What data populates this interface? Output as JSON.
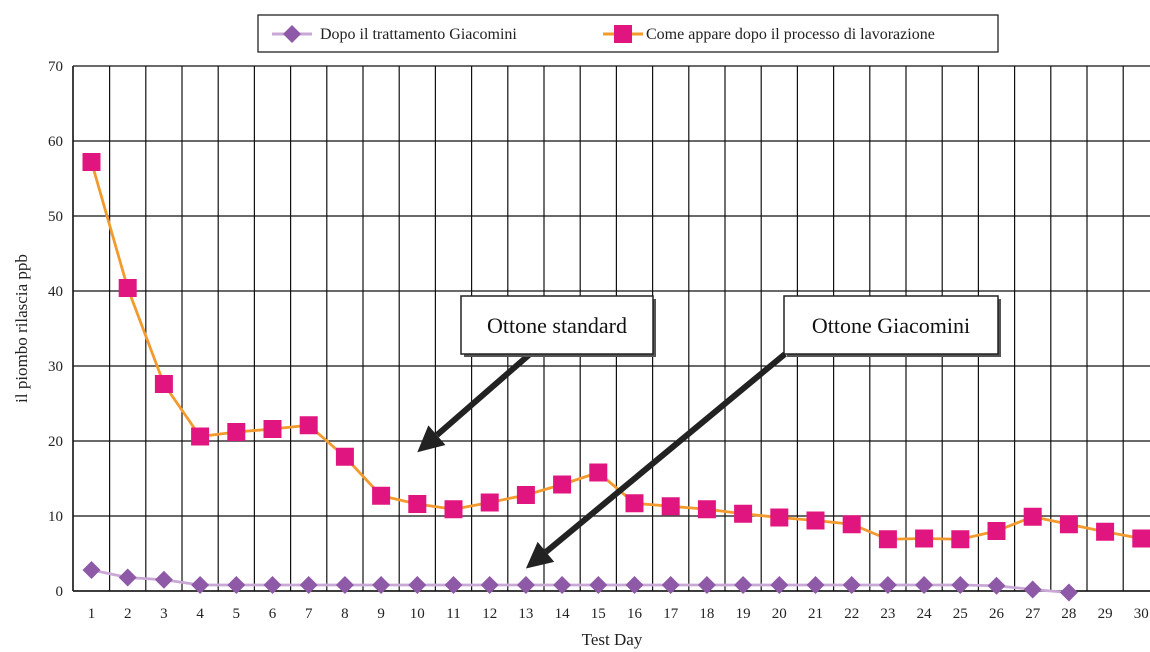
{
  "chart_data": {
    "type": "line",
    "xlabel": "Test Day",
    "ylabel": "il piombo rilascia ppb",
    "ylim": [
      0,
      70
    ],
    "yticks": [
      "0",
      "10",
      "20",
      "30",
      "40",
      "50",
      "60",
      "70"
    ],
    "x": [
      1,
      2,
      3,
      4,
      5,
      6,
      7,
      8,
      9,
      10,
      11,
      12,
      13,
      14,
      15,
      16,
      17,
      18,
      19,
      20,
      21,
      22,
      23,
      24,
      25,
      26,
      27,
      28,
      29,
      30
    ],
    "xtick_labels": [
      "1",
      "2",
      "3",
      "4",
      "5",
      "6",
      "7",
      "8",
      "9",
      "10",
      "11",
      "12",
      "13",
      "14",
      "15",
      "16",
      "17",
      "18",
      "19",
      "20",
      "21",
      "22",
      "23",
      "24",
      "25",
      "26",
      "27",
      "28",
      "29",
      "30"
    ],
    "grid": true,
    "legend_position": "top",
    "series": [
      {
        "name": "Dopo il trattamento Giacomini",
        "color": "#c9a8d6",
        "marker_color": "#8e5aa8",
        "marker": "diamond",
        "values": [
          2.8,
          1.8,
          1.5,
          0.8,
          0.8,
          0.8,
          0.8,
          0.8,
          0.8,
          0.8,
          0.8,
          0.8,
          0.8,
          0.8,
          0.8,
          0.8,
          0.8,
          0.8,
          0.8,
          0.8,
          0.8,
          0.8,
          0.8,
          0.8,
          0.8,
          0.7,
          0.2,
          -0.2,
          null,
          null
        ]
      },
      {
        "name": "Come appare dopo il processo di lavorazione",
        "color": "#f39a2e",
        "marker_color": "#e0157f",
        "marker": "square",
        "values": [
          57.2,
          40.4,
          27.6,
          20.6,
          21.2,
          21.6,
          22.1,
          17.9,
          12.7,
          11.6,
          10.9,
          11.8,
          12.8,
          14.2,
          15.8,
          11.7,
          11.3,
          10.9,
          10.3,
          9.8,
          9.4,
          8.9,
          6.9,
          7.0,
          6.9,
          8.0,
          9.9,
          8.9,
          7.9,
          7.0
        ]
      }
    ],
    "annotations": [
      {
        "label": "Ottone standard",
        "target_x": 10,
        "target_y": 18.5
      },
      {
        "label": "Ottone Giacomini",
        "target_x": 13,
        "target_y": 3
      }
    ]
  }
}
